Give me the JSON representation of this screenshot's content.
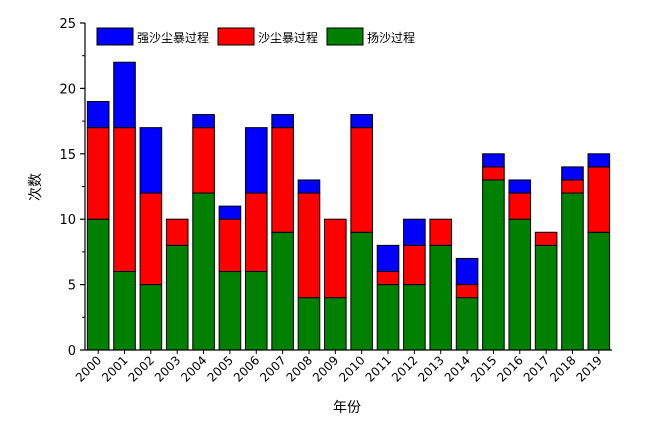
{
  "chart_data": {
    "type": "bar",
    "stacked": true,
    "categories": [
      "2000",
      "2001",
      "2002",
      "2003",
      "2004",
      "2005",
      "2006",
      "2007",
      "2008",
      "2009",
      "2010",
      "2011",
      "2012",
      "2013",
      "2014",
      "2015",
      "2016",
      "2017",
      "2018",
      "2019"
    ],
    "series": [
      {
        "name": "扬沙过程",
        "color": "#008000",
        "values": [
          10,
          6,
          5,
          8,
          12,
          6,
          6,
          9,
          4,
          4,
          9,
          5,
          5,
          8,
          4,
          13,
          10,
          8,
          12,
          9
        ]
      },
      {
        "name": "沙尘暴过程",
        "color": "#ff0000",
        "values": [
          7,
          11,
          7,
          2,
          5,
          4,
          6,
          8,
          8,
          6,
          8,
          1,
          3,
          2,
          1,
          1,
          2,
          1,
          1,
          5
        ]
      },
      {
        "name": "强沙尘暴过程",
        "color": "#0000ff",
        "values": [
          2,
          5,
          5,
          0,
          1,
          1,
          5,
          1,
          1,
          0,
          1,
          2,
          2,
          0,
          2,
          1,
          1,
          0,
          1,
          1
        ]
      }
    ],
    "legend_order": [
      "强沙尘暴过程",
      "沙尘暴过程",
      "扬沙过程"
    ],
    "title": "",
    "xlabel": "年份",
    "ylabel": "次数",
    "ylim": [
      0,
      25
    ],
    "yticks": [
      0,
      5,
      10,
      15,
      20,
      25
    ],
    "grid": false,
    "legend_position": "top-left"
  }
}
